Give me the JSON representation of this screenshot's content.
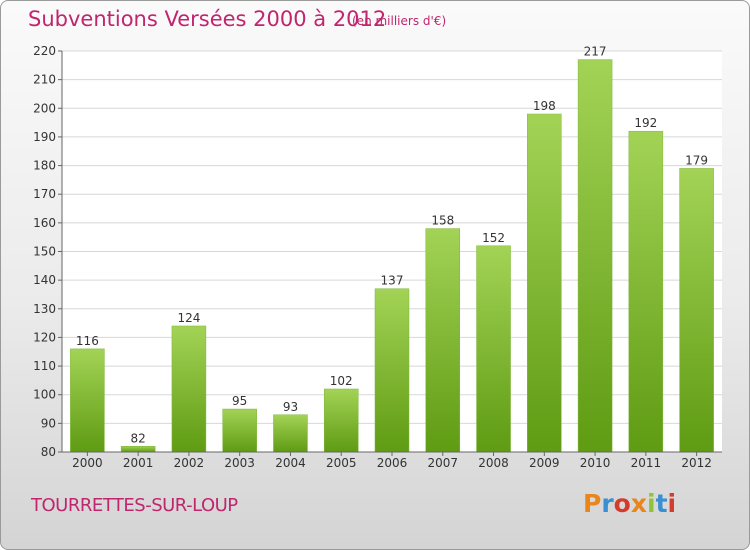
{
  "header": {
    "title": "Subventions Versées 2000 à 2012",
    "subtitle": "(en milliers d'€)"
  },
  "footer": {
    "commune": "TOURRETTES-SUR-LOUP",
    "logo": "Proxiti"
  },
  "colors": {
    "accent": "#c0256e",
    "bar_top": "#a3d356",
    "bar_bottom": "#5f9b13"
  },
  "chart_data": {
    "type": "bar",
    "title": "Subventions Versées 2000 à 2012",
    "subtitle": "(en milliers d'€)",
    "categories": [
      "2000",
      "2001",
      "2002",
      "2003",
      "2004",
      "2005",
      "2006",
      "2007",
      "2008",
      "2009",
      "2010",
      "2011",
      "2012"
    ],
    "values": [
      116,
      82,
      124,
      95,
      93,
      102,
      137,
      158,
      152,
      198,
      217,
      192,
      179
    ],
    "ylim": [
      80,
      220
    ],
    "yticks": [
      80,
      90,
      100,
      110,
      120,
      130,
      140,
      150,
      160,
      170,
      180,
      190,
      200,
      210,
      220
    ],
    "grid": true,
    "xlabel": "",
    "ylabel": ""
  }
}
